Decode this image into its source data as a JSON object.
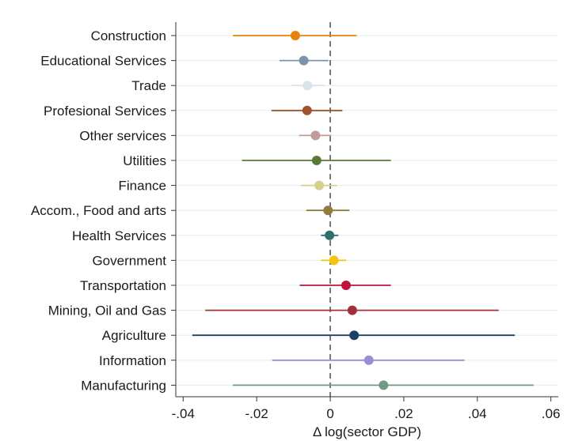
{
  "chart_data": {
    "type": "scatter",
    "subtype": "coefficient-plot-with-confidence-intervals",
    "xlabel": "Δ log(sector GDP)",
    "xlim": [
      -0.042,
      0.062
    ],
    "xticks": [
      -0.04,
      -0.02,
      0,
      0.02,
      0.04,
      0.06
    ],
    "xtick_labels": [
      "-.04",
      "-.02",
      "0",
      ".02",
      ".04",
      ".06"
    ],
    "reference_line": {
      "x": 0,
      "style": "dashed",
      "color": "#333333"
    },
    "grid": "horizontal",
    "series": [
      {
        "label": "Construction",
        "estimate": -0.0095,
        "ci_low": -0.0265,
        "ci_high": 0.0072,
        "color": "#e8800c"
      },
      {
        "label": "Educational Services",
        "estimate": -0.0072,
        "ci_low": -0.0138,
        "ci_high": -0.0005,
        "color": "#7b93ac"
      },
      {
        "label": "Trade",
        "estimate": -0.0062,
        "ci_low": -0.0105,
        "ci_high": -0.0015,
        "color": "#d9e4ea"
      },
      {
        "label": "Profesional Services",
        "estimate": -0.0063,
        "ci_low": -0.016,
        "ci_high": 0.0033,
        "color": "#a0522d"
      },
      {
        "label": "Other services",
        "estimate": -0.004,
        "ci_low": -0.0085,
        "ci_high": 0.0003,
        "color": "#c49a9a"
      },
      {
        "label": "Utilities",
        "estimate": -0.0037,
        "ci_low": -0.024,
        "ci_high": 0.0165,
        "color": "#5a7a3a"
      },
      {
        "label": "Finance",
        "estimate": -0.003,
        "ci_low": -0.008,
        "ci_high": 0.0018,
        "color": "#d6cf8f"
      },
      {
        "label": "Accom., Food and arts",
        "estimate": -0.0006,
        "ci_low": -0.0065,
        "ci_high": 0.0052,
        "color": "#8e7d3d"
      },
      {
        "label": "Health Services",
        "estimate": -0.0002,
        "ci_low": -0.0025,
        "ci_high": 0.0022,
        "color": "#2f6f6f"
      },
      {
        "label": "Government",
        "estimate": 0.001,
        "ci_low": -0.0025,
        "ci_high": 0.0043,
        "color": "#f2c511"
      },
      {
        "label": "Transportation",
        "estimate": 0.0043,
        "ci_low": -0.0083,
        "ci_high": 0.0165,
        "color": "#c0143c"
      },
      {
        "label": "Mining, Oil and Gas",
        "estimate": 0.006,
        "ci_low": -0.034,
        "ci_high": 0.0458,
        "color": "#a0303a"
      },
      {
        "label": "Agriculture",
        "estimate": 0.0065,
        "ci_low": -0.0375,
        "ci_high": 0.0502,
        "color": "#1e3f66"
      },
      {
        "label": "Information",
        "estimate": 0.0105,
        "ci_low": -0.0158,
        "ci_high": 0.0365,
        "color": "#9a8fd6"
      },
      {
        "label": "Manufacturing",
        "estimate": 0.0145,
        "ci_low": -0.0265,
        "ci_high": 0.0553,
        "color": "#6f9a85"
      }
    ]
  }
}
